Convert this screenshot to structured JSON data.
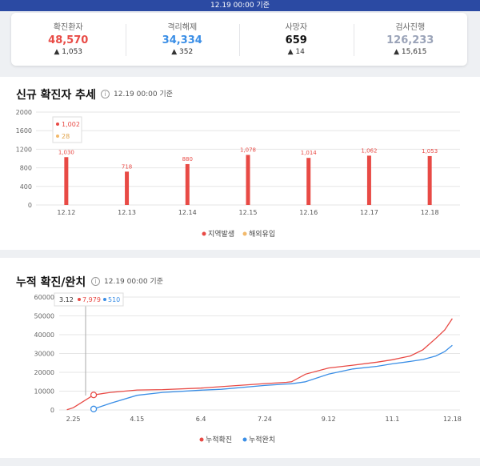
{
  "banner": {
    "text": "12.19 00:00 기준"
  },
  "stats": [
    {
      "label": "확진환자",
      "value": "48,570",
      "delta": "1,053",
      "color": "#e84a45"
    },
    {
      "label": "격리해제",
      "value": "34,334",
      "delta": "352",
      "color": "#3a8ee6"
    },
    {
      "label": "사망자",
      "value": "659",
      "delta": "14",
      "color": "#111111"
    },
    {
      "label": "검사진행",
      "value": "126,233",
      "delta": "15,615",
      "color": "#9aa3b8"
    }
  ],
  "trend": {
    "title": "신규 확진자 추세",
    "timestamp": "12.19 00:00 기준",
    "tooltip": {
      "local": "1,002",
      "imported": "28"
    },
    "legend": {
      "local": "지역발생",
      "imported": "해외유입"
    }
  },
  "cumulative": {
    "title": "누적 확진/완치",
    "timestamp": "12.19 00:00 기준",
    "tooltip": {
      "date": "3.12",
      "confirmed": "7,979",
      "recovered": "510"
    },
    "legend": {
      "confirmed": "누적확진",
      "recovered": "누적완치"
    }
  },
  "chart_data": [
    {
      "type": "bar",
      "categories": [
        "12.12",
        "12.13",
        "12.14",
        "12.15",
        "12.16",
        "12.17",
        "12.18"
      ],
      "series": [
        {
          "name": "지역발생",
          "values": [
            1030,
            718,
            880,
            1078,
            1014,
            1062,
            1053
          ],
          "color": "#e84a45"
        }
      ],
      "ylim": [
        0,
        2000
      ],
      "yticks": [
        0,
        400,
        800,
        1200,
        1600,
        2000
      ],
      "data_labels": [
        "1,030",
        "718",
        "880",
        "1,078",
        "1,014",
        "1,062",
        "1,053"
      ],
      "grid": true,
      "legend": "bottom"
    },
    {
      "type": "line",
      "x_ticks": [
        "2.25",
        "4.15",
        "6.4",
        "7.24",
        "9.12",
        "11.1",
        "12.18"
      ],
      "ylim": [
        0,
        60000
      ],
      "yticks": [
        0,
        10000,
        20000,
        30000,
        40000,
        50000,
        60000
      ],
      "series": [
        {
          "name": "누적확진",
          "color": "#e84a45",
          "x": [
            "2.20",
            "2.25",
            "3.12",
            "3.25",
            "4.15",
            "5.5",
            "6.4",
            "6.20",
            "7.24",
            "8.10",
            "8.14",
            "8.25",
            "9.12",
            "10.1",
            "10.20",
            "11.1",
            "11.15",
            "11.25",
            "12.5",
            "12.12",
            "12.18"
          ],
          "y": [
            100,
            1200,
            7979,
            9300,
            10600,
            10800,
            11600,
            12400,
            14000,
            14700,
            15000,
            19000,
            22300,
            23800,
            25400,
            26700,
            28700,
            32000,
            38000,
            42500,
            48570
          ]
        },
        {
          "name": "누적완치",
          "color": "#3a8ee6",
          "x": [
            "3.12",
            "3.25",
            "4.15",
            "5.5",
            "6.4",
            "6.20",
            "7.24",
            "8.10",
            "8.14",
            "8.25",
            "9.12",
            "10.1",
            "10.20",
            "11.1",
            "11.15",
            "11.25",
            "12.5",
            "12.12",
            "12.18"
          ],
          "y": [
            510,
            3500,
            7800,
            9300,
            10500,
            11000,
            13000,
            13800,
            13900,
            15000,
            19000,
            21800,
            23200,
            24500,
            25800,
            26800,
            28700,
            31000,
            34334
          ]
        }
      ],
      "grid": true,
      "legend": "bottom"
    }
  ]
}
